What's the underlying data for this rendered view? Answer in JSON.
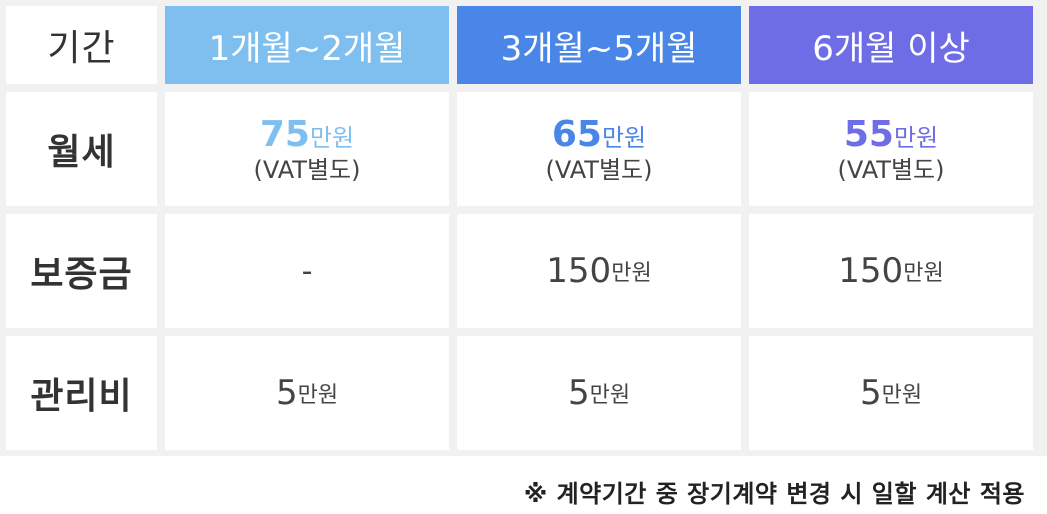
{
  "header": {
    "label": "기간",
    "periods": [
      "1개월~2개월",
      "3개월~5개월",
      "6개월 이상"
    ]
  },
  "colors": {
    "period1": "#7fbff0",
    "period2": "#4a86e8",
    "period3": "#6f6de6"
  },
  "rows": {
    "rent": {
      "label": "월세",
      "values": [
        {
          "amount": "75",
          "unit": "만원",
          "note": "(VAT별도)"
        },
        {
          "amount": "65",
          "unit": "만원",
          "note": "(VAT별도)"
        },
        {
          "amount": "55",
          "unit": "만원",
          "note": "(VAT별도)"
        }
      ]
    },
    "deposit": {
      "label": "보증금",
      "values": [
        {
          "amount": "-",
          "unit": ""
        },
        {
          "amount": "150",
          "unit": "만원"
        },
        {
          "amount": "150",
          "unit": "만원"
        }
      ]
    },
    "maintenance": {
      "label": "관리비",
      "values": [
        {
          "amount": "5",
          "unit": "만원"
        },
        {
          "amount": "5",
          "unit": "만원"
        },
        {
          "amount": "5",
          "unit": "만원"
        }
      ]
    }
  },
  "footnote": "※ 계약기간 중 장기계약 변경 시 일할 계산 적용"
}
